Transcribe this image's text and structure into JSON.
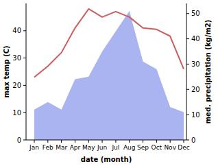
{
  "chart_data": {
    "type": "line",
    "x_label": "date (month)",
    "y_label": "max temp (C)",
    "y2_label": "med. precipitation (kg/m2)",
    "categories": [
      "Jan",
      "Feb",
      "Mar",
      "Apr",
      "May",
      "Jun",
      "Jul",
      "Aug",
      "Sep",
      "Oct",
      "Nov",
      "Dec"
    ],
    "series": [
      {
        "name": "max temp (C)",
        "type": "line",
        "color": "#cd5c5c",
        "values": [
          23,
          27,
          32,
          41,
          48,
          45,
          47,
          45,
          41,
          40.5,
          38,
          26
        ]
      },
      {
        "name": "med. precipitation (kg/m2)",
        "type": "area",
        "axis": "y2",
        "color": "#aab4f0",
        "values": [
          12,
          15,
          12,
          24,
          25,
          35,
          43,
          51,
          31,
          28,
          13,
          11
        ]
      }
    ],
    "ylim": [
      0,
      50
    ],
    "yticks": [
      0,
      10,
      20,
      30,
      40
    ],
    "y2lim": [
      0,
      54
    ],
    "y2ticks": [
      0,
      10,
      20,
      30,
      40,
      50
    ]
  }
}
